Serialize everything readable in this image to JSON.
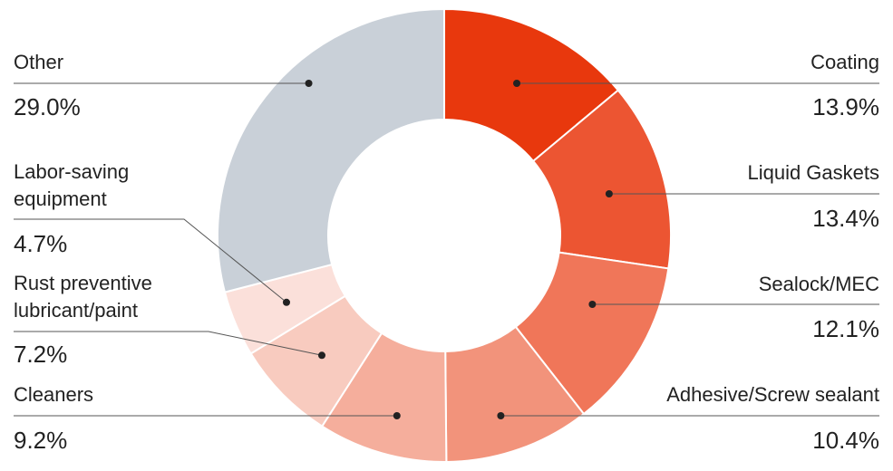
{
  "chart_data": {
    "type": "pie",
    "donut": true,
    "start": "top, clockwise",
    "slices": [
      {
        "label": "Coating",
        "value": 13.9,
        "display": "13.9%",
        "color": "#e8380d"
      },
      {
        "label": "Liquid Gaskets",
        "value": 13.4,
        "display": "13.4%",
        "color": "#ec5532"
      },
      {
        "label": "Sealock/MEC",
        "value": 12.1,
        "display": "12.1%",
        "color": "#f07659"
      },
      {
        "label": "Adhesive/Screw sealant",
        "value": 10.4,
        "display": "10.4%",
        "color": "#f2937b"
      },
      {
        "label": "Cleaners",
        "value": 9.2,
        "display": "9.2%",
        "color": "#f5ae9c"
      },
      {
        "label": "Rust preventive\nlubricant/paint",
        "value": 7.2,
        "display": "7.2%",
        "color": "#f8cbbf"
      },
      {
        "label": "Labor-saving\nequipment",
        "value": 4.7,
        "display": "4.7%",
        "color": "#fbe0da"
      },
      {
        "label": "Other",
        "value": 29.0,
        "display": "29.0%",
        "color": "#c9d0d8"
      }
    ]
  }
}
